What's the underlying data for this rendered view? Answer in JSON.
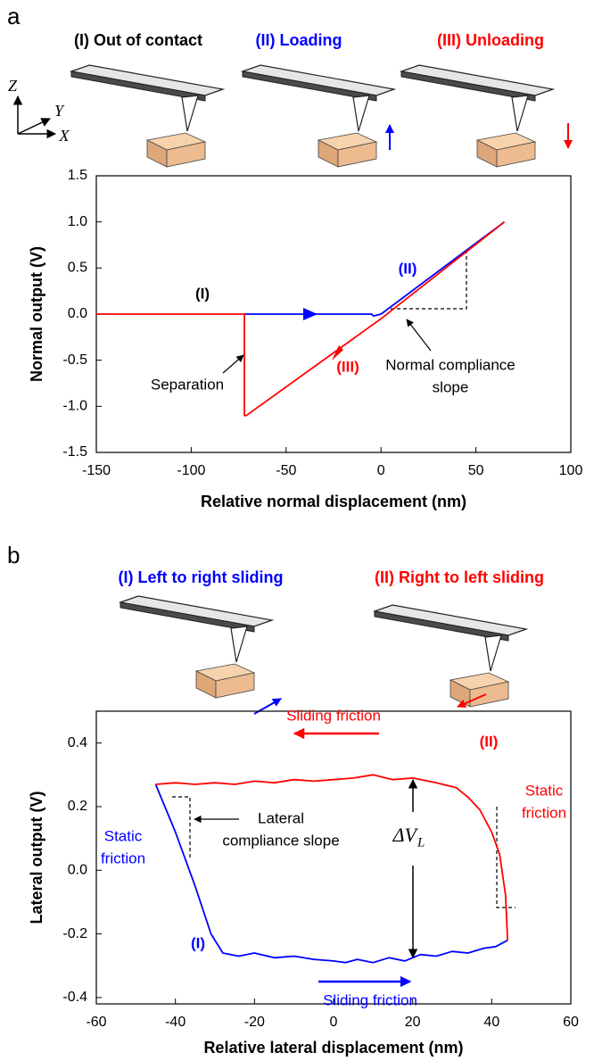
{
  "chart_data": [
    {
      "type": "line",
      "panel": "a",
      "headers": [
        "(I) Out of contact"
      ],
      "coordinate_labels": [
        "Z",
        "Y",
        "X"
      ],
      "xlabel": "Relative normal displacement (nm)",
      "ylabel": "Normal output (V)",
      "xlim": [
        -150,
        100
      ],
      "xticks": [
        -150,
        -100,
        -50,
        0,
        50,
        100
      ],
      "ylim": [
        -1.5,
        1.5
      ],
      "yticks": [
        -1.5,
        {
          "value": -1,
          "label": "-1.0"
        },
        -0.5,
        {
          "value": 0,
          "label": "0.0"
        },
        0.5,
        {
          "value": 1,
          "label": "1.0"
        },
        1.5
      ],
      "series": [
        {
          "name": "(II) Loading",
          "color": "#0000ff",
          "x": [
            -72,
            -5,
            -4,
            0,
            65
          ],
          "values": [
            0,
            0,
            -0.02,
            0,
            1.0
          ]
        },
        {
          "name": "(III) Unloading",
          "color": "#ff0000",
          "x": [
            65,
            0,
            -71,
            -72,
            -72,
            -150
          ],
          "values": [
            1.0,
            -0.05,
            -1.1,
            -1.1,
            0,
            0
          ]
        }
      ],
      "annotations": [
        {
          "text": [
            "(I)"
          ],
          "color": "#000000"
        },
        {
          "text": [
            "(II)"
          ],
          "color": "#0000ff"
        },
        {
          "text": [
            "(III)"
          ],
          "color": "#ff0000"
        },
        {
          "text": [
            "Separation"
          ],
          "color": "#000000"
        },
        {
          "text": [
            "Normal compliance",
            "slope"
          ],
          "color": "#000000"
        }
      ]
    },
    {
      "type": "line",
      "panel": "b",
      "xlabel": "Relative lateral displacement (nm)",
      "ylabel": "Lateral output (V)",
      "xlim": [
        -60,
        60
      ],
      "xticks": [
        -60,
        -40,
        -20,
        0,
        20,
        40,
        60
      ],
      "ylim": [
        -0.42,
        0.5
      ],
      "yticks": [
        -0.4,
        -0.2,
        {
          "value": 0,
          "label": "0.0"
        },
        0.2,
        0.4
      ],
      "series": [
        {
          "name": "(I) Left to right sliding",
          "color": "#0000ff",
          "x": [
            -45,
            -40,
            -35,
            -31,
            -28,
            -24,
            -20,
            -15,
            -10,
            -5,
            0,
            3,
            6,
            10,
            14,
            18,
            22,
            26,
            30,
            34,
            38,
            41,
            44
          ],
          "values": [
            0.27,
            0.12,
            -0.05,
            -0.2,
            -0.26,
            -0.27,
            -0.26,
            -0.275,
            -0.27,
            -0.28,
            -0.285,
            -0.29,
            -0.28,
            -0.29,
            -0.275,
            -0.285,
            -0.265,
            -0.27,
            -0.255,
            -0.26,
            -0.245,
            -0.24,
            -0.22
          ]
        },
        {
          "name": "(II) Right to left sliding",
          "color": "#ff0000",
          "x": [
            44,
            43.5,
            42,
            40,
            37,
            34,
            31,
            26,
            20,
            15,
            10,
            5,
            0,
            -5,
            -10,
            -15,
            -20,
            -25,
            -30,
            -35,
            -40,
            -45
          ],
          "values": [
            -0.22,
            -0.08,
            0.05,
            0.12,
            0.19,
            0.23,
            0.26,
            0.275,
            0.29,
            0.285,
            0.3,
            0.29,
            0.285,
            0.28,
            0.285,
            0.275,
            0.28,
            0.27,
            0.275,
            0.27,
            0.275,
            0.27
          ]
        }
      ],
      "annotations": [
        {
          "text": [
            "Sliding friction"
          ],
          "color": "#ff0000"
        },
        {
          "text": [
            "(II)"
          ],
          "color": "#ff0000"
        },
        {
          "text": [
            "Static",
            "friction"
          ],
          "color": "#ff0000"
        },
        {
          "text": [
            "ΔV"
          ],
          "sub": "L",
          "color": "#000000"
        },
        {
          "text": [
            "Lateral",
            "compliance slope"
          ],
          "color": "#000000"
        },
        {
          "text": [
            "Static",
            "friction"
          ],
          "color": "#0000ff"
        },
        {
          "text": [
            "(I)"
          ],
          "color": "#0000ff"
        },
        {
          "text": [
            "Sliding friction"
          ],
          "color": "#0000ff"
        }
      ]
    }
  ]
}
